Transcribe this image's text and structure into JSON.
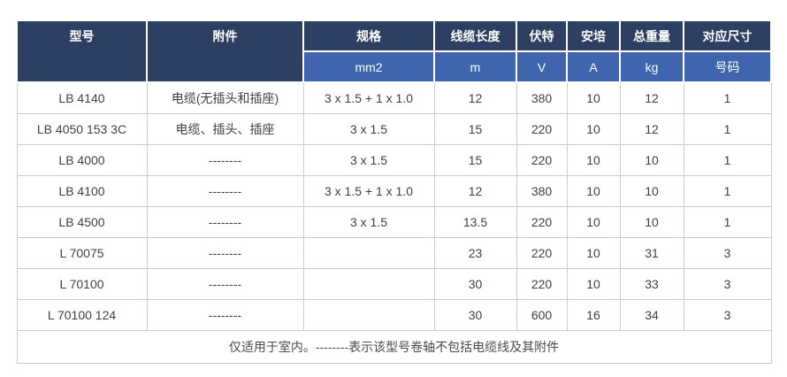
{
  "table": {
    "columns": [
      {
        "label": "型号",
        "unit": ""
      },
      {
        "label": "附件",
        "unit": ""
      },
      {
        "label": "规格",
        "unit": "mm2"
      },
      {
        "label": "线缆长度",
        "unit": "m"
      },
      {
        "label": "伏特",
        "unit": "V"
      },
      {
        "label": "安培",
        "unit": "A"
      },
      {
        "label": "总重量",
        "unit": "kg"
      },
      {
        "label": "对应尺寸",
        "unit": "号码"
      }
    ],
    "rows": [
      [
        "LB 4140",
        "电缆(无插头和插座)",
        "3 x 1.5 + 1 x 1.0",
        "12",
        "380",
        "10",
        "12",
        "1"
      ],
      [
        "LB 4050 153 3C",
        "电缆、插头、插座",
        "3 x 1.5",
        "15",
        "220",
        "10",
        "12",
        "1"
      ],
      [
        "LB 4000",
        "--------",
        "3 x 1.5",
        "15",
        "220",
        "10",
        "10",
        "1"
      ],
      [
        "LB 4100",
        "--------",
        "3 x 1.5 + 1 x 1.0",
        "12",
        "380",
        "10",
        "10",
        "1"
      ],
      [
        "LB 4500",
        "--------",
        "3 x 1.5",
        "13.5",
        "220",
        "10",
        "10",
        "1"
      ],
      [
        "L 70075",
        "--------",
        "",
        "23",
        "220",
        "10",
        "31",
        "3"
      ],
      [
        "L 70100",
        "--------",
        "",
        "30",
        "220",
        "10",
        "33",
        "3"
      ],
      [
        "L 70100 124",
        "--------",
        "",
        "30",
        "600",
        "16",
        "34",
        "3"
      ]
    ],
    "footnote": "仅适用于室内。--------表示该型号卷轴不包括电缆线及其附件",
    "colors": {
      "header_bg": "#2d3f63",
      "subheader_bg": "#3e65ae",
      "body_text": "#404040",
      "grid_line": "#cccccc"
    }
  },
  "chart_data": {
    "type": "table",
    "title": "",
    "columns": [
      "型号",
      "附件",
      "规格 mm2",
      "线缆长度 m",
      "伏特 V",
      "安培 A",
      "总重量 kg",
      "对应尺寸 号码"
    ],
    "rows": [
      [
        "LB 4140",
        "电缆(无插头和插座)",
        "3 x 1.5 + 1 x 1.0",
        12,
        380,
        10,
        12,
        1
      ],
      [
        "LB 4050 153 3C",
        "电缆、插头、插座",
        "3 x 1.5",
        15,
        220,
        10,
        12,
        1
      ],
      [
        "LB 4000",
        "--------",
        "3 x 1.5",
        15,
        220,
        10,
        10,
        1
      ],
      [
        "LB 4100",
        "--------",
        "3 x 1.5 + 1 x 1.0",
        12,
        380,
        10,
        10,
        1
      ],
      [
        "LB 4500",
        "--------",
        "3 x 1.5",
        13.5,
        220,
        10,
        10,
        1
      ],
      [
        "L 70075",
        "--------",
        "",
        23,
        220,
        10,
        31,
        3
      ],
      [
        "L 70100",
        "--------",
        "",
        30,
        220,
        10,
        33,
        3
      ],
      [
        "L 70100 124",
        "--------",
        "",
        30,
        600,
        16,
        34,
        3
      ]
    ]
  }
}
